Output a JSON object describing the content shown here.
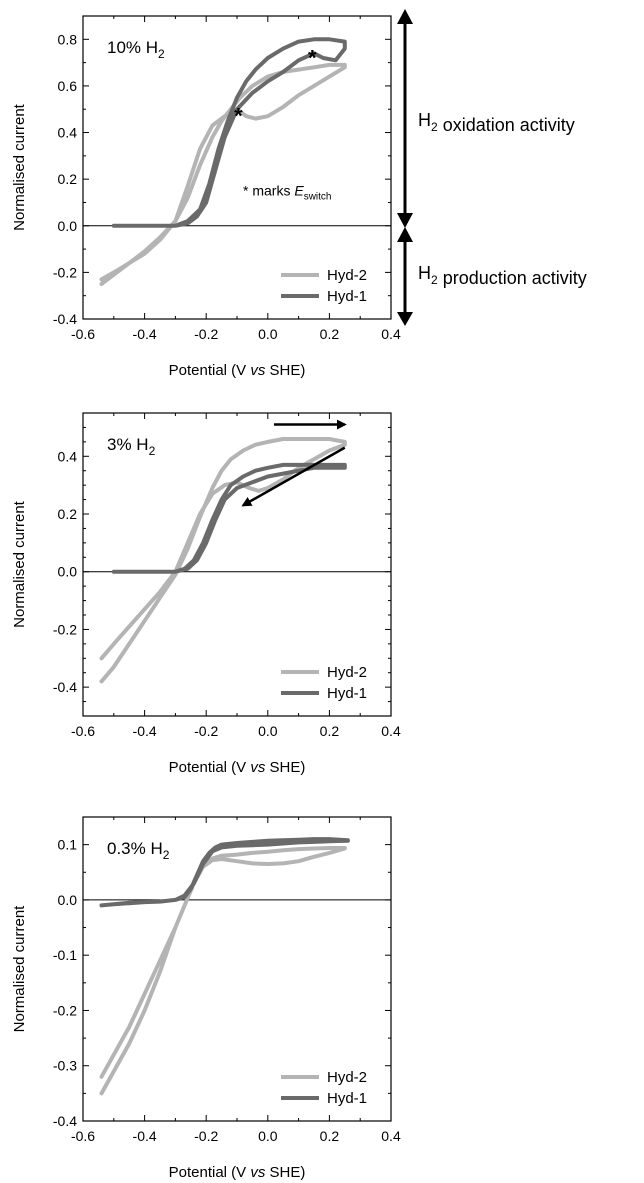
{
  "colors": {
    "hyd2": "#b4b4b4",
    "hyd1": "#6a6a6a",
    "axis": "#000000",
    "annotation": "#000000"
  },
  "side_annotations": {
    "oxidation": "H2 oxidation activity",
    "production": "H2 production activity"
  },
  "chart_data": [
    {
      "type": "line",
      "panel_label": "10% H2",
      "xlabel": "Potential (V vs SHE)",
      "ylabel": "Normalised current",
      "xlim": [
        -0.6,
        0.4
      ],
      "ylim": [
        -0.4,
        0.9
      ],
      "xticks": [
        -0.6,
        -0.5,
        -0.4,
        -0.3,
        -0.2,
        -0.1,
        0.0,
        0.1,
        0.2,
        0.3,
        0.4
      ],
      "xtick_labels": [
        "-0.6",
        "",
        "-0.4",
        "",
        "-0.2",
        "",
        "0.0",
        "",
        "0.2",
        "",
        "0.4"
      ],
      "yticks": [
        -0.4,
        -0.2,
        0.0,
        0.2,
        0.4,
        0.6,
        0.8
      ],
      "ytick_labels": [
        "-0.4",
        "-0.2",
        "0.0",
        "0.2",
        "0.4",
        "0.6",
        "0.8"
      ],
      "zero_line": true,
      "legend": {
        "position": "bottom-right",
        "entries": [
          "Hyd-2",
          "Hyd-1"
        ]
      },
      "annotation_text": "* marks E",
      "annotation_sub": "switch",
      "star_markers": [
        {
          "x": -0.09,
          "y": 0.49
        },
        {
          "x": 0.15,
          "y": 0.74
        }
      ],
      "series": [
        {
          "name": "Hyd-2",
          "x": [
            -0.54,
            -0.5,
            -0.45,
            -0.4,
            -0.35,
            -0.3,
            -0.26,
            -0.22,
            -0.18,
            -0.15,
            -0.12,
            -0.09,
            -0.05,
            0.0,
            0.05,
            0.1,
            0.15,
            0.2,
            0.25,
            0.25,
            0.2,
            0.15,
            0.1,
            0.05,
            0.0,
            -0.04,
            -0.07,
            -0.1,
            -0.14,
            -0.18,
            -0.22,
            -0.26,
            -0.3,
            -0.35,
            -0.4,
            -0.45,
            -0.5,
            -0.54
          ],
          "y": [
            -0.25,
            -0.21,
            -0.16,
            -0.11,
            -0.05,
            0.02,
            0.12,
            0.26,
            0.38,
            0.45,
            0.5,
            0.55,
            0.6,
            0.64,
            0.66,
            0.67,
            0.68,
            0.69,
            0.69,
            0.68,
            0.64,
            0.6,
            0.56,
            0.51,
            0.47,
            0.46,
            0.47,
            0.5,
            0.47,
            0.43,
            0.33,
            0.17,
            0.02,
            -0.06,
            -0.12,
            -0.16,
            -0.2,
            -0.23
          ]
        },
        {
          "name": "Hyd-1",
          "x": [
            -0.5,
            -0.45,
            -0.4,
            -0.35,
            -0.3,
            -0.26,
            -0.22,
            -0.19,
            -0.16,
            -0.13,
            -0.1,
            -0.07,
            -0.04,
            0.0,
            0.05,
            0.1,
            0.15,
            0.2,
            0.25,
            0.25,
            0.22,
            0.18,
            0.15,
            0.1,
            0.05,
            0.0,
            -0.05,
            -0.1,
            -0.14,
            -0.17,
            -0.2,
            -0.23,
            -0.26,
            -0.3,
            -0.35,
            -0.4,
            -0.45,
            -0.5
          ],
          "y": [
            0.0,
            0.0,
            0.0,
            0.0,
            0.0,
            0.02,
            0.07,
            0.18,
            0.33,
            0.45,
            0.55,
            0.62,
            0.67,
            0.72,
            0.76,
            0.79,
            0.8,
            0.8,
            0.79,
            0.76,
            0.71,
            0.72,
            0.74,
            0.71,
            0.66,
            0.62,
            0.57,
            0.5,
            0.38,
            0.24,
            0.1,
            0.04,
            0.01,
            0.0,
            0.0,
            0.0,
            0.0,
            0.0
          ]
        }
      ]
    },
    {
      "type": "line",
      "panel_label": "3% H2",
      "xlabel": "Potential (V vs SHE)",
      "ylabel": "Normalised current",
      "xlim": [
        -0.6,
        0.4
      ],
      "ylim": [
        -0.5,
        0.55
      ],
      "xticks": [
        -0.6,
        -0.5,
        -0.4,
        -0.3,
        -0.2,
        -0.1,
        0.0,
        0.1,
        0.2,
        0.3,
        0.4
      ],
      "xtick_labels": [
        "-0.6",
        "",
        "-0.4",
        "",
        "-0.2",
        "",
        "0.0",
        "",
        "0.2",
        "",
        "0.4"
      ],
      "yticks": [
        -0.5,
        -0.4,
        -0.3,
        -0.2,
        -0.1,
        0.0,
        0.1,
        0.2,
        0.3,
        0.4,
        0.5
      ],
      "ytick_labels": [
        "",
        "-0.4",
        "",
        "-0.2",
        "",
        "0.0",
        "",
        "0.2",
        "",
        "0.4",
        ""
      ],
      "zero_line": true,
      "legend": {
        "position": "bottom-right",
        "entries": [
          "Hyd-2",
          "Hyd-1"
        ]
      },
      "arrows": [
        {
          "from": [
            0.02,
            0.51
          ],
          "to": [
            0.25,
            0.51
          ]
        },
        {
          "from": [
            0.25,
            0.43
          ],
          "to": [
            -0.08,
            0.23
          ]
        }
      ],
      "series": [
        {
          "name": "Hyd-2",
          "x": [
            -0.54,
            -0.5,
            -0.45,
            -0.4,
            -0.35,
            -0.3,
            -0.26,
            -0.22,
            -0.18,
            -0.15,
            -0.12,
            -0.08,
            -0.04,
            0.0,
            0.05,
            0.1,
            0.15,
            0.2,
            0.25,
            0.25,
            0.2,
            0.15,
            0.1,
            0.05,
            0.0,
            -0.03,
            -0.06,
            -0.1,
            -0.14,
            -0.18,
            -0.22,
            -0.26,
            -0.3,
            -0.35,
            -0.4,
            -0.45,
            -0.5,
            -0.54
          ],
          "y": [
            -0.38,
            -0.33,
            -0.25,
            -0.17,
            -0.09,
            -0.01,
            0.08,
            0.19,
            0.29,
            0.35,
            0.39,
            0.42,
            0.44,
            0.45,
            0.46,
            0.46,
            0.46,
            0.46,
            0.45,
            0.44,
            0.42,
            0.39,
            0.36,
            0.32,
            0.29,
            0.28,
            0.29,
            0.31,
            0.3,
            0.27,
            0.2,
            0.1,
            0.0,
            -0.07,
            -0.13,
            -0.19,
            -0.25,
            -0.3
          ]
        },
        {
          "name": "Hyd-1",
          "x": [
            -0.5,
            -0.45,
            -0.4,
            -0.35,
            -0.3,
            -0.27,
            -0.24,
            -0.21,
            -0.18,
            -0.15,
            -0.12,
            -0.08,
            -0.04,
            0.0,
            0.05,
            0.1,
            0.15,
            0.2,
            0.25,
            0.25,
            0.2,
            0.15,
            0.1,
            0.05,
            0.0,
            -0.05,
            -0.1,
            -0.14,
            -0.17,
            -0.2,
            -0.23,
            -0.26,
            -0.3,
            -0.35,
            -0.4,
            -0.45,
            -0.5
          ],
          "y": [
            0.0,
            0.0,
            0.0,
            0.0,
            0.0,
            0.01,
            0.04,
            0.1,
            0.18,
            0.25,
            0.3,
            0.33,
            0.35,
            0.36,
            0.37,
            0.37,
            0.37,
            0.37,
            0.37,
            0.36,
            0.36,
            0.36,
            0.35,
            0.34,
            0.33,
            0.31,
            0.29,
            0.25,
            0.18,
            0.1,
            0.04,
            0.01,
            0.0,
            0.0,
            0.0,
            0.0,
            0.0
          ]
        }
      ]
    },
    {
      "type": "line",
      "panel_label": "0.3% H2",
      "xlabel": "Potential (V vs SHE)",
      "ylabel": "Normalised current",
      "xlim": [
        -0.6,
        0.4
      ],
      "ylim": [
        -0.4,
        0.15
      ],
      "xticks": [
        -0.6,
        -0.5,
        -0.4,
        -0.3,
        -0.2,
        -0.1,
        0.0,
        0.1,
        0.2,
        0.3,
        0.4
      ],
      "xtick_labels": [
        "-0.6",
        "",
        "-0.4",
        "",
        "-0.2",
        "",
        "0.0",
        "",
        "0.2",
        "",
        "0.4"
      ],
      "yticks": [
        -0.4,
        -0.3,
        -0.2,
        -0.1,
        0.0,
        0.1
      ],
      "ytick_labels": [
        "-0.4",
        "-0.3",
        "-0.2",
        "-0.1",
        "0.0",
        "0.1"
      ],
      "zero_line": true,
      "legend": {
        "position": "bottom-right",
        "entries": [
          "Hyd-2",
          "Hyd-1"
        ]
      },
      "series": [
        {
          "name": "Hyd-2",
          "x": [
            -0.54,
            -0.5,
            -0.45,
            -0.4,
            -0.35,
            -0.3,
            -0.27,
            -0.24,
            -0.21,
            -0.18,
            -0.15,
            -0.1,
            -0.05,
            0.0,
            0.05,
            0.1,
            0.15,
            0.2,
            0.25,
            0.25,
            0.2,
            0.15,
            0.1,
            0.05,
            0.0,
            -0.05,
            -0.1,
            -0.15,
            -0.18,
            -0.21,
            -0.24,
            -0.27,
            -0.3,
            -0.35,
            -0.4,
            -0.45,
            -0.5,
            -0.54
          ],
          "y": [
            -0.35,
            -0.31,
            -0.26,
            -0.2,
            -0.13,
            -0.05,
            -0.01,
            0.03,
            0.06,
            0.075,
            0.08,
            0.082,
            0.085,
            0.087,
            0.09,
            0.092,
            0.093,
            0.094,
            0.094,
            0.093,
            0.085,
            0.078,
            0.07,
            0.066,
            0.065,
            0.066,
            0.07,
            0.074,
            0.072,
            0.06,
            0.03,
            -0.01,
            -0.05,
            -0.11,
            -0.17,
            -0.23,
            -0.28,
            -0.32
          ]
        },
        {
          "name": "Hyd-1",
          "x": [
            -0.54,
            -0.5,
            -0.45,
            -0.4,
            -0.35,
            -0.3,
            -0.27,
            -0.25,
            -0.23,
            -0.21,
            -0.19,
            -0.17,
            -0.15,
            -0.1,
            -0.05,
            0.0,
            0.05,
            0.1,
            0.15,
            0.2,
            0.26,
            0.26,
            0.2,
            0.15,
            0.1,
            0.05,
            0.0,
            -0.05,
            -0.1,
            -0.15,
            -0.18,
            -0.21,
            -0.24,
            -0.27,
            -0.3,
            -0.35,
            -0.4,
            -0.45,
            -0.5,
            -0.54
          ],
          "y": [
            -0.01,
            -0.008,
            -0.006,
            -0.004,
            -0.003,
            0.0,
            0.005,
            0.02,
            0.045,
            0.07,
            0.085,
            0.095,
            0.1,
            0.103,
            0.105,
            0.107,
            0.108,
            0.109,
            0.11,
            0.11,
            0.108,
            0.107,
            0.106,
            0.105,
            0.104,
            0.102,
            0.1,
            0.099,
            0.098,
            0.095,
            0.088,
            0.065,
            0.03,
            0.008,
            0.0,
            -0.003,
            -0.004,
            -0.005,
            -0.008,
            -0.01
          ]
        }
      ]
    }
  ]
}
